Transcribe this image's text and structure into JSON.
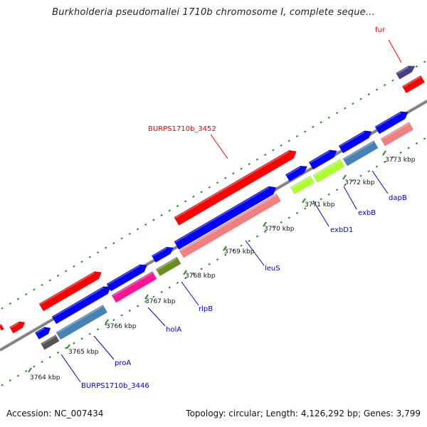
{
  "title": "Burkholderia pseudomallei 1710b chromosome I, complete seque...",
  "footer": {
    "accession_label": "Accession:",
    "accession": "NC_007434",
    "topology_label": "Topology:",
    "topology": "circular",
    "length_label": "Length:",
    "length": "4,126,292 bp",
    "genes_label": "Genes:",
    "genes": "3,799"
  },
  "colors": {
    "red": "#ff0000",
    "blue": "#0000ff",
    "steel_blue": "#4682b4",
    "pink": "#f08080",
    "magenta": "#ff1493",
    "olive": "#6b8e23",
    "lime": "#adff2f",
    "dark_slate": "#483d8b",
    "gray": "#555555",
    "backbone": "#808080",
    "tick": "#228b22",
    "label_red": "#ff0000",
    "label_blue": "#0000cc"
  },
  "ticks": [
    {
      "label": "3764 kbp"
    },
    {
      "label": "3765 kbp"
    },
    {
      "label": "3766 kbp"
    },
    {
      "label": "3767 kbp"
    },
    {
      "label": "3768 kbp"
    },
    {
      "label": "3769 kbp"
    },
    {
      "label": "3770 kbp"
    },
    {
      "label": "3771 kbp"
    },
    {
      "label": "3772 kbp"
    },
    {
      "label": "3773 kbp"
    }
  ],
  "gene_labels": [
    {
      "text": "fur",
      "color": "red"
    },
    {
      "text": "BURPS1710b_3452",
      "color": "red"
    },
    {
      "text": "dapB",
      "color": "blue"
    },
    {
      "text": "exbB",
      "color": "blue"
    },
    {
      "text": "exbD1",
      "color": "blue"
    },
    {
      "text": "leuS",
      "color": "blue"
    },
    {
      "text": "rlpB",
      "color": "blue"
    },
    {
      "text": "holA",
      "color": "blue"
    },
    {
      "text": "proA",
      "color": "blue"
    },
    {
      "text": "BURPS1710b_3446",
      "color": "blue"
    }
  ]
}
